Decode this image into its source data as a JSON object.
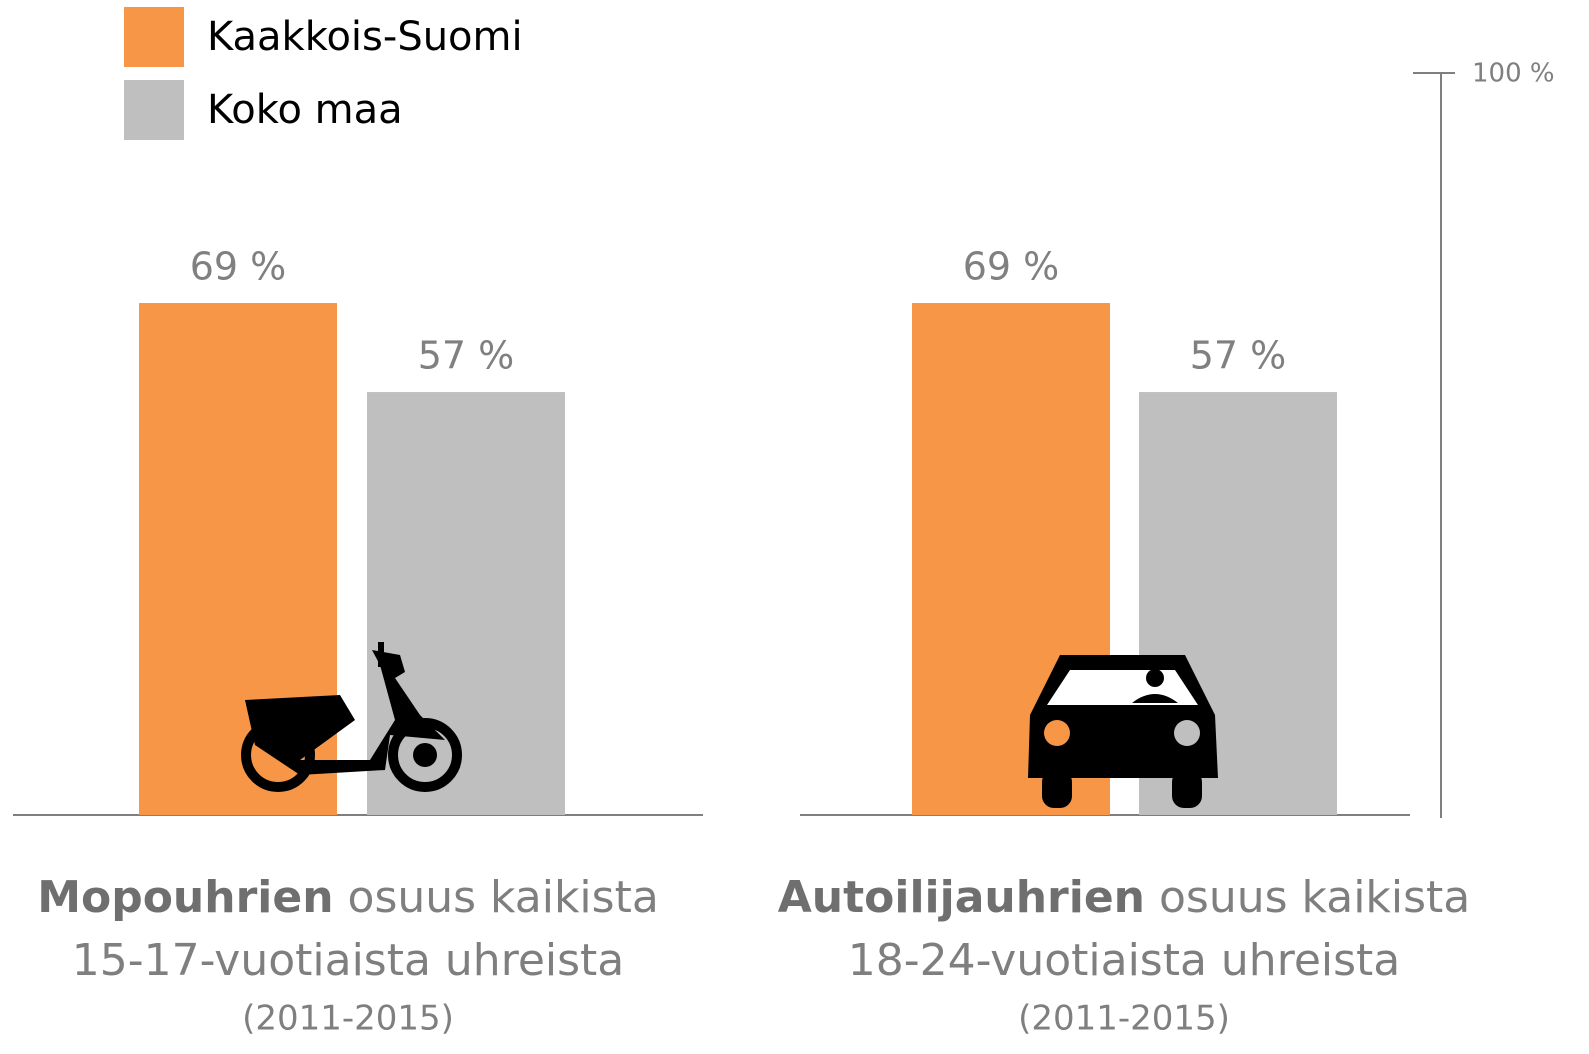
{
  "chart_data": {
    "type": "bar",
    "panels": [
      {
        "bold": "Mopouhrien",
        "text": "osuus kaikista",
        "line2": "15-17-vuotiaista uhreista",
        "period": "(2011-2015)"
      },
      {
        "bold": "Autoilijauhrien",
        "text": "osuus kaikista",
        "line2": "18-24-vuotiaista uhreista",
        "period": "(2011-2015)"
      }
    ],
    "series": [
      {
        "name": "Kaakkois-Suomi",
        "color": "#f79646",
        "values": [
          69,
          69
        ],
        "value_labels": [
          "69 %",
          "69 %"
        ]
      },
      {
        "name": "Koko maa",
        "color": "#bfbfbf",
        "values": [
          57,
          57
        ],
        "value_labels": [
          "57 %",
          "57 %"
        ]
      }
    ],
    "ylim": [
      0,
      100
    ],
    "yticks": [
      {
        "value": 100,
        "label": "100 %"
      }
    ]
  }
}
